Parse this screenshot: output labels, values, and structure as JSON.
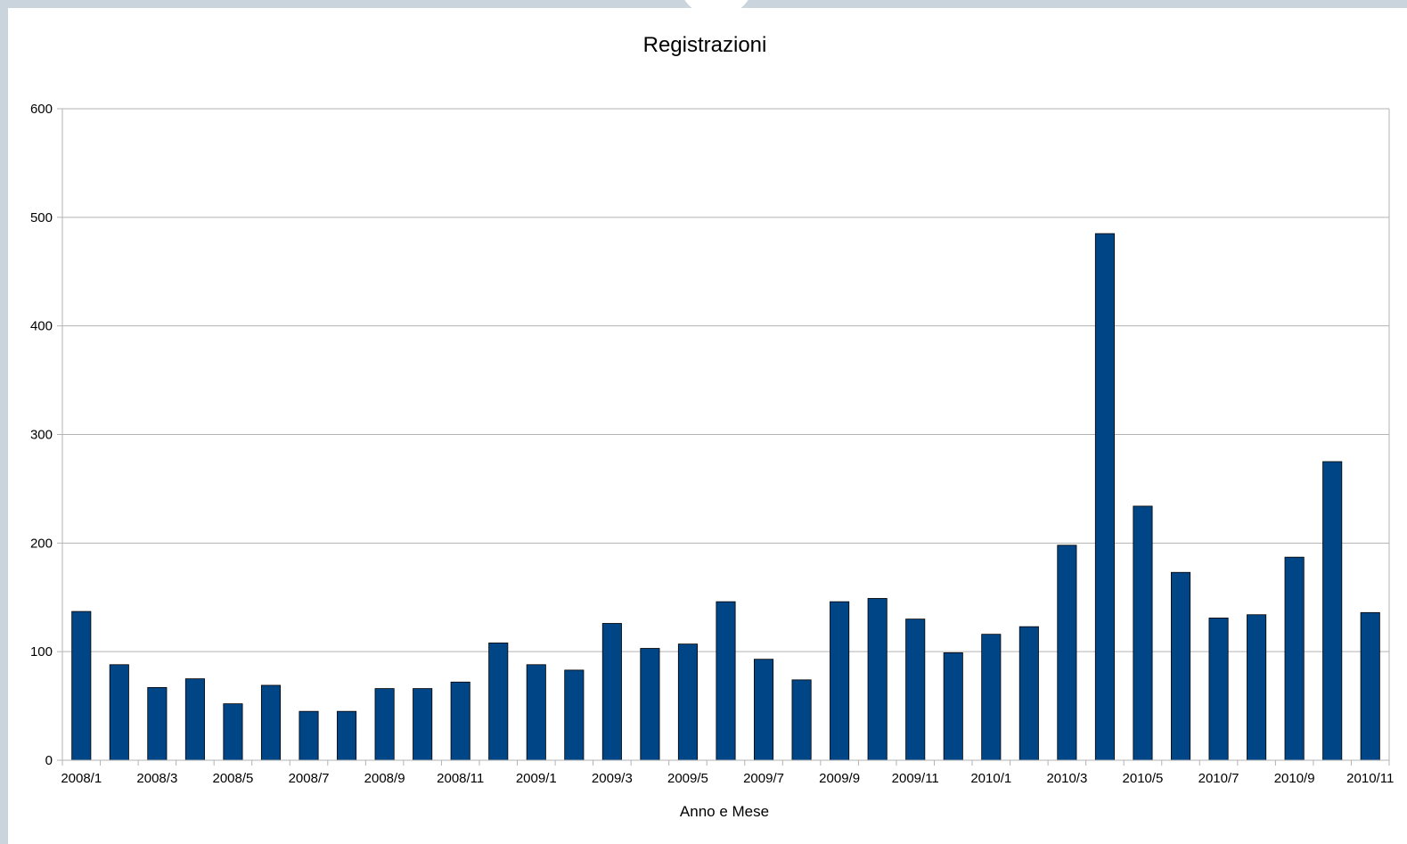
{
  "chart_data": {
    "type": "bar",
    "title": "Registrazioni",
    "xlabel": "Anno e Mese",
    "ylabel": "",
    "ylim": [
      0,
      600
    ],
    "yticks": [
      0,
      100,
      200,
      300,
      400,
      500,
      600
    ],
    "grid": true,
    "legend": "none",
    "bar_color": "#004586",
    "categories": [
      "2008/1",
      "2008/2",
      "2008/3",
      "2008/4",
      "2008/5",
      "2008/6",
      "2008/7",
      "2008/8",
      "2008/9",
      "2008/10",
      "2008/11",
      "2008/12",
      "2009/1",
      "2009/2",
      "2009/3",
      "2009/4",
      "2009/5",
      "2009/6",
      "2009/7",
      "2009/8",
      "2009/9",
      "2009/10",
      "2009/11",
      "2009/12",
      "2010/1",
      "2010/2",
      "2010/3",
      "2010/4",
      "2010/5",
      "2010/6",
      "2010/7",
      "2010/8",
      "2010/9",
      "2010/10",
      "2010/11"
    ],
    "visible_x_labels": [
      "2008/1",
      "2008/3",
      "2008/5",
      "2008/7",
      "2008/9",
      "2008/11",
      "2009/1",
      "2009/3",
      "2009/5",
      "2009/7",
      "2009/9",
      "2009/11",
      "2010/1",
      "2010/3",
      "2010/5",
      "2010/7",
      "2010/9",
      "2010/11"
    ],
    "values": [
      137,
      88,
      67,
      75,
      52,
      69,
      45,
      45,
      66,
      66,
      72,
      108,
      88,
      83,
      126,
      103,
      107,
      146,
      93,
      74,
      146,
      149,
      130,
      99,
      116,
      123,
      198,
      485,
      234,
      173,
      131,
      134,
      187,
      275,
      136
    ]
  }
}
